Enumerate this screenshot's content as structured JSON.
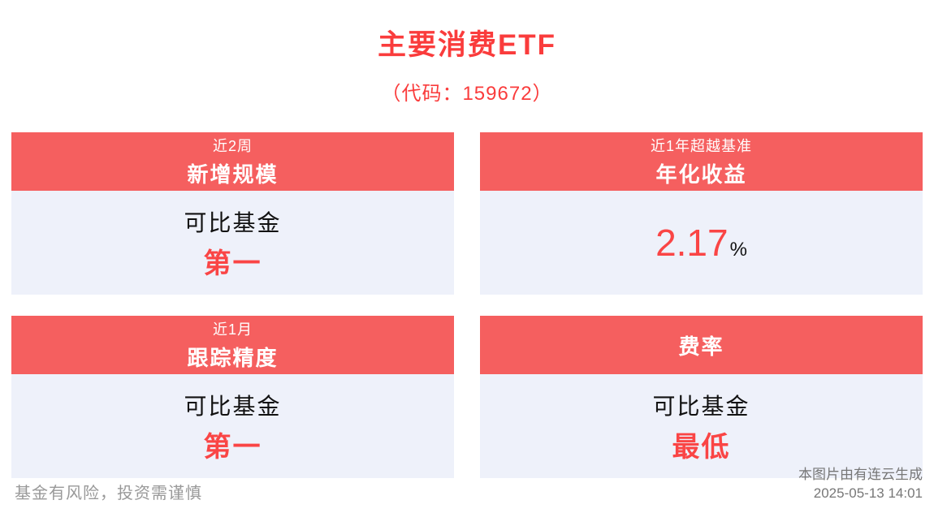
{
  "page": {
    "title": "主要消费ETF",
    "subtitle": "（代码：159672）"
  },
  "cards": {
    "new_scale": {
      "header_line1": "近2周",
      "header_line2": "新增规模",
      "body_label": "可比基金",
      "body_rank": "第一"
    },
    "annualized_return": {
      "header_line1": "近1年超越基准",
      "header_line2": "年化收益",
      "value": "2.17",
      "unit": "%"
    },
    "tracking_precision": {
      "header_line1": "近1月",
      "header_line2": "跟踪精度",
      "body_label": "可比基金",
      "body_rank": "第一"
    },
    "fee_rate": {
      "header_line2": "费率",
      "body_label": "可比基金",
      "body_rank": "最低"
    }
  },
  "footer": {
    "disclaimer": "基金有风险，投资需谨慎",
    "source": "本图片由有连云生成",
    "timestamp": "2025-05-13 14:01"
  },
  "colors": {
    "accent_red": "#fa3c3c",
    "header_bg": "#f55f5f",
    "body_bg": "#eef1fa"
  }
}
